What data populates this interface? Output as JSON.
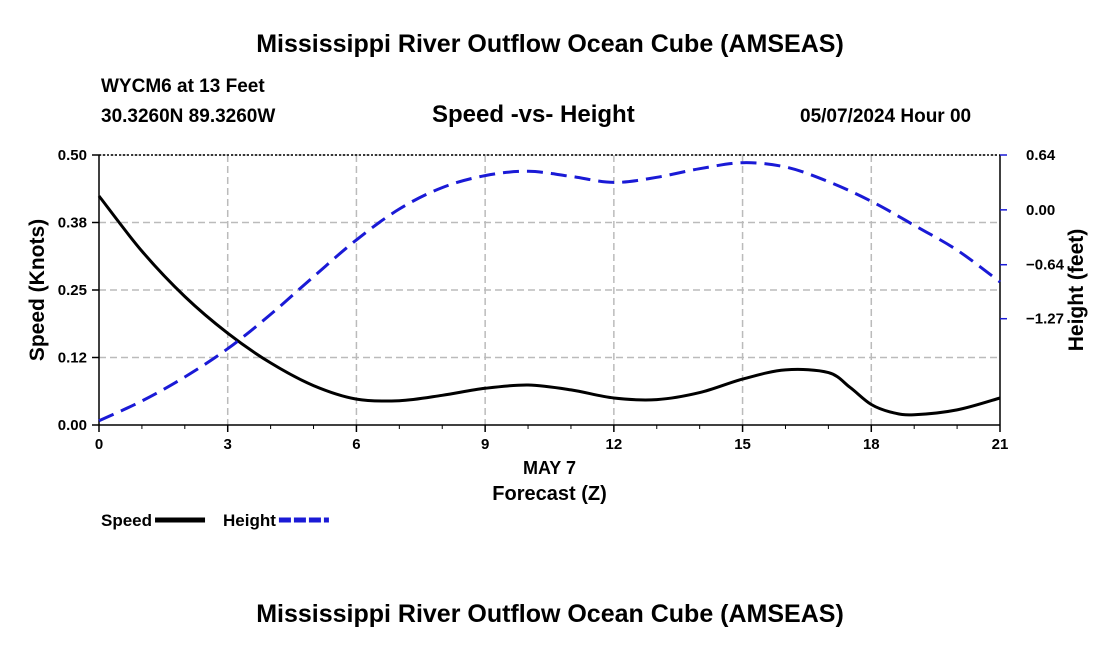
{
  "page": {
    "main_title": "Mississippi River Outflow Ocean Cube (AMSEAS)",
    "station": "WYCM6 at 13 Feet",
    "coords": "30.3260N  89.3260W",
    "subtitle": "Speed -vs- Height",
    "datetime": "05/07/2024 Hour 00",
    "footer_title": "Mississippi River Outflow Ocean Cube (AMSEAS)"
  },
  "chart_data": {
    "type": "line",
    "title": "Speed -vs- Height",
    "xlabel_date": "MAY 7",
    "xlabel": "Forecast (Z)",
    "ylabel_left": "Speed (Knots)",
    "ylabel_right": "Height (feet)",
    "xlim": [
      0,
      21
    ],
    "ylim_left": [
      0,
      0.5
    ],
    "ylim_right": [
      -2.51,
      0.64
    ],
    "x_ticks": [
      0,
      3,
      6,
      9,
      12,
      15,
      18,
      21
    ],
    "x_tick_labels": [
      "0",
      "3",
      "6",
      "9",
      "12",
      "15",
      "18",
      "21"
    ],
    "y_left_ticks": [
      0,
      0.125,
      0.25,
      0.375,
      0.5
    ],
    "y_left_tick_labels": [
      "0.00",
      "0.12",
      "0.25",
      "0.38",
      "0.50"
    ],
    "y_right_ticks": [
      -1.27,
      -0.64,
      0.0,
      0.64
    ],
    "y_right_tick_labels": [
      "−1.27",
      "−0.64",
      "0.00",
      "0.64"
    ],
    "grid": true,
    "series": [
      {
        "name": "Speed",
        "axis": "left",
        "color": "#000000",
        "dash": "solid",
        "x": [
          0,
          1,
          2,
          3,
          4,
          5,
          6,
          7,
          8,
          9,
          10,
          11,
          12,
          13,
          14,
          15,
          16,
          17,
          17.5,
          18,
          18.5,
          19,
          20,
          21
        ],
        "values": [
          0.424,
          0.322,
          0.238,
          0.17,
          0.115,
          0.073,
          0.048,
          0.045,
          0.055,
          0.068,
          0.074,
          0.065,
          0.05,
          0.047,
          0.06,
          0.085,
          0.102,
          0.097,
          0.07,
          0.038,
          0.023,
          0.019,
          0.028,
          0.05
        ]
      },
      {
        "name": "Height",
        "axis": "right",
        "color": "#1a1ad6",
        "dash": "dashed",
        "x": [
          0,
          1,
          2,
          3,
          4,
          5,
          6,
          7,
          8,
          9,
          10,
          11,
          12,
          13,
          14,
          15,
          16,
          17,
          18,
          19,
          20,
          21
        ],
        "values": [
          -2.46,
          -2.23,
          -1.95,
          -1.62,
          -1.22,
          -0.78,
          -0.35,
          0.01,
          0.26,
          0.4,
          0.45,
          0.39,
          0.32,
          0.38,
          0.48,
          0.55,
          0.5,
          0.33,
          0.1,
          -0.18,
          -0.47,
          -0.84
        ]
      }
    ],
    "legend": [
      {
        "label": "Speed",
        "color": "#000000",
        "dash": "solid"
      },
      {
        "label": "Height",
        "color": "#1a1ad6",
        "dash": "dashed"
      }
    ],
    "legend_position": "bottom-left"
  }
}
